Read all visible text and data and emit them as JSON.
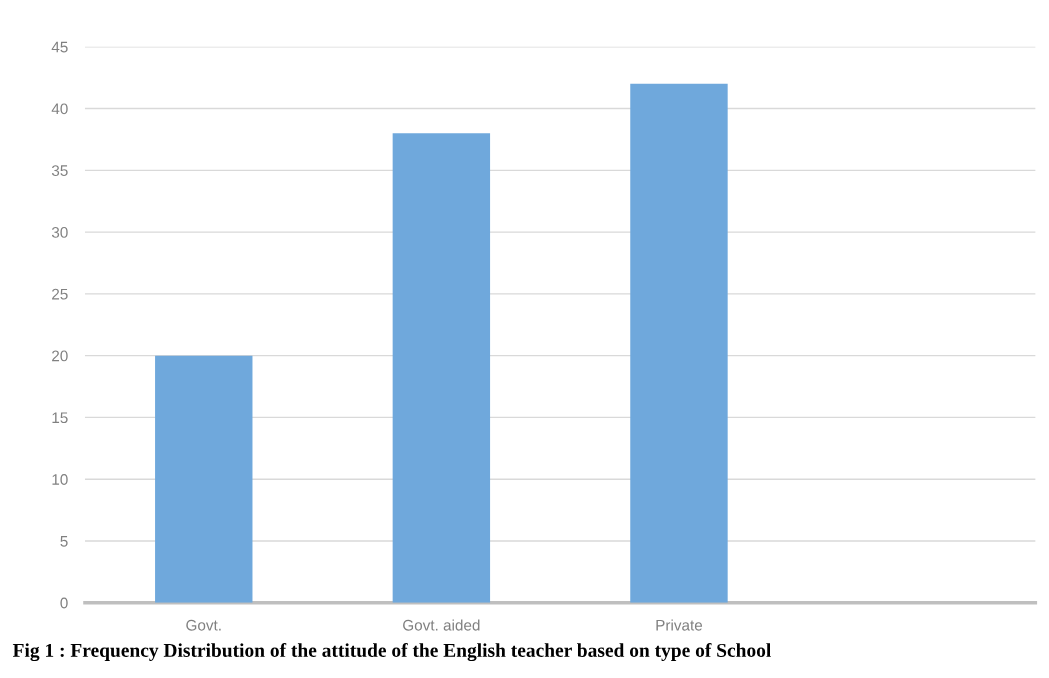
{
  "chart_data": {
    "type": "bar",
    "title": "Fig 1 : Frequency Distribution of the attitude of the English teacher based on type of School",
    "categories": [
      "Govt.",
      "Govt. aided",
      "Private",
      null
    ],
    "values": [
      20,
      38,
      42,
      null
    ],
    "color": "#6fa8dc",
    "ylim": [
      0,
      45
    ],
    "yticks": [
      0,
      5,
      10,
      15,
      20,
      25,
      30,
      35,
      40,
      45
    ],
    "grid": "y"
  }
}
